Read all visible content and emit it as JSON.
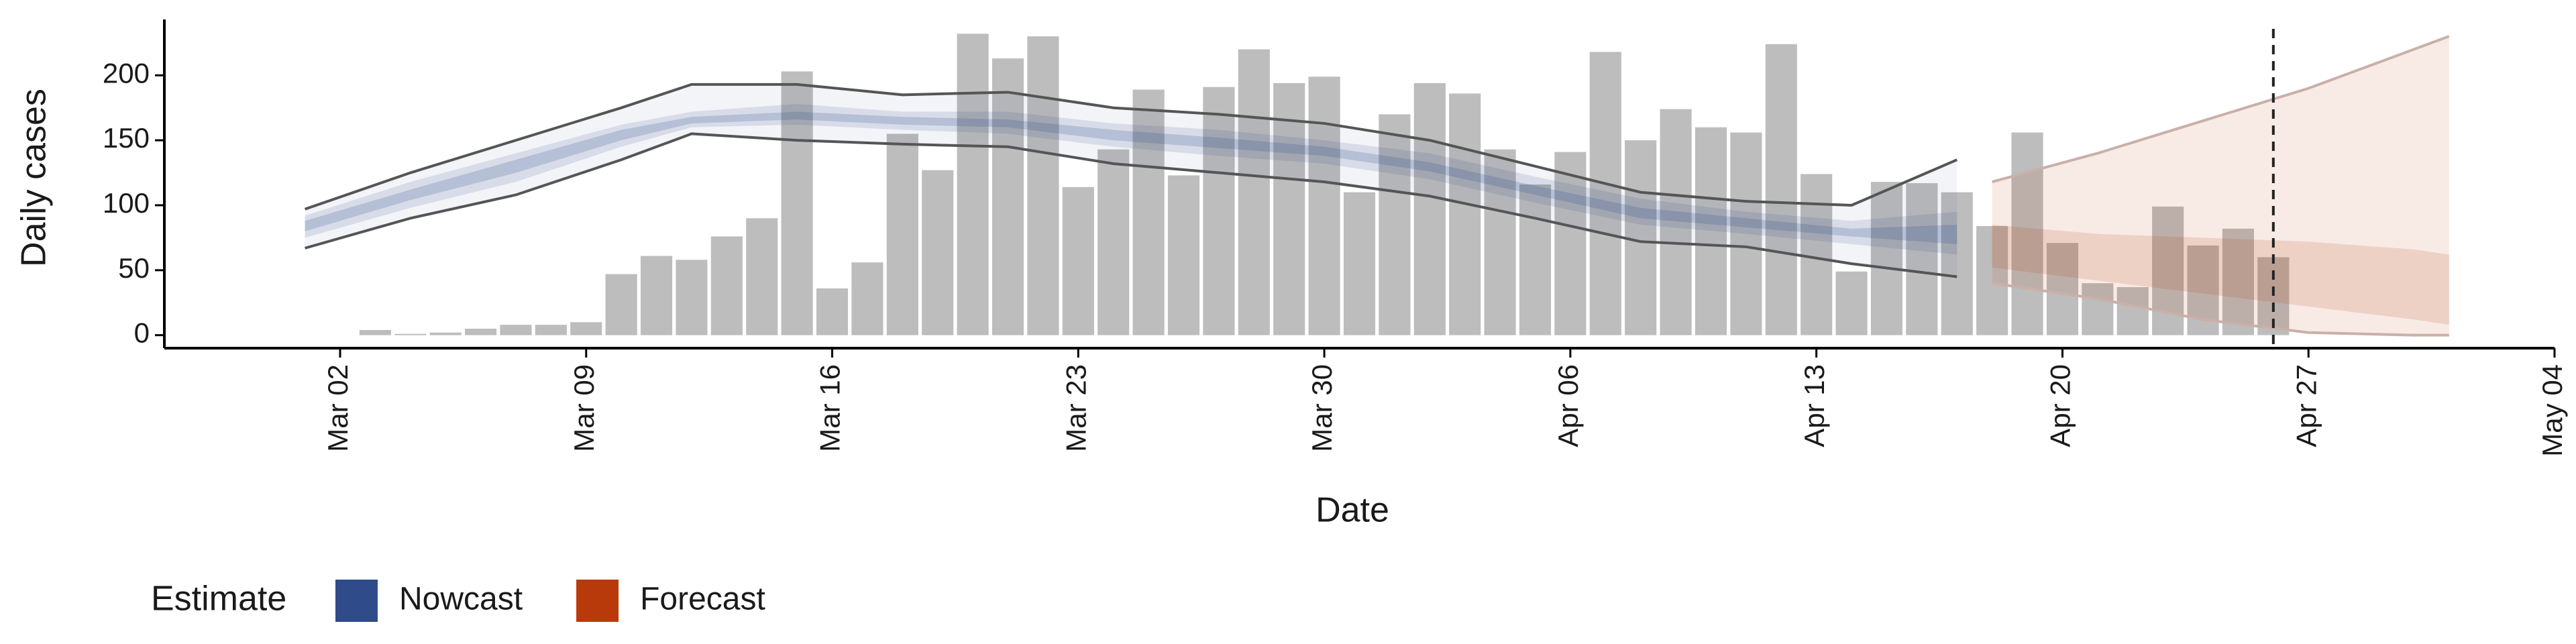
{
  "chart_data": {
    "type": "nowcast",
    "y_label": "Daily cases",
    "x_label": "Date",
    "legend_title": "Estimate",
    "xlim": [
      "Feb 26",
      "May 04"
    ],
    "xticks": [
      "Mar 02",
      "Mar 09",
      "Mar 16",
      "Mar 23",
      "Mar 30",
      "Apr 06",
      "Apr 13",
      "Apr 20",
      "Apr 27",
      "May 04"
    ],
    "ylim": [
      -10,
      243
    ],
    "yticks": [
      0,
      50,
      100,
      150,
      200
    ],
    "vline": "Apr 26",
    "bars": {
      "color": "#bdbdbd",
      "x": [
        "Mar 03",
        "Mar 04",
        "Mar 05",
        "Mar 06",
        "Mar 07",
        "Mar 08",
        "Mar 09",
        "Mar 10",
        "Mar 11",
        "Mar 12",
        "Mar 13",
        "Mar 14",
        "Mar 15",
        "Mar 16",
        "Mar 17",
        "Mar 18",
        "Mar 19",
        "Mar 20",
        "Mar 21",
        "Mar 22",
        "Mar 23",
        "Mar 24",
        "Mar 25",
        "Mar 26",
        "Mar 27",
        "Mar 28",
        "Mar 29",
        "Mar 30",
        "Mar 31",
        "Apr 01",
        "Apr 02",
        "Apr 03",
        "Apr 04",
        "Apr 05",
        "Apr 06",
        "Apr 07",
        "Apr 08",
        "Apr 09",
        "Apr 10",
        "Apr 11",
        "Apr 12",
        "Apr 13",
        "Apr 14",
        "Apr 15",
        "Apr 16",
        "Apr 17",
        "Apr 18",
        "Apr 19",
        "Apr 20",
        "Apr 21",
        "Apr 22",
        "Apr 23",
        "Apr 24",
        "Apr 25",
        "Apr 26"
      ],
      "values": [
        4,
        1,
        2,
        5,
        8,
        8,
        10,
        47,
        61,
        58,
        76,
        90,
        203,
        36,
        56,
        155,
        127,
        232,
        213,
        230,
        114,
        143,
        189,
        123,
        191,
        220,
        194,
        199,
        110,
        170,
        194,
        186,
        143,
        116,
        141,
        218,
        150,
        174,
        160,
        156,
        224,
        124,
        49,
        118,
        117,
        110,
        84,
        156,
        71,
        40,
        37,
        99,
        69,
        82,
        60
      ]
    },
    "series": [
      {
        "name": "Nowcast",
        "color": "#2f4b8a",
        "line_color": "#555555",
        "x": [
          "Mar 01",
          "Mar 04",
          "Mar 07",
          "Mar 10",
          "Mar 12",
          "Mar 15",
          "Mar 18",
          "Mar 21",
          "Mar 24",
          "Mar 27",
          "Mar 30",
          "Apr 02",
          "Apr 05",
          "Apr 08",
          "Apr 11",
          "Apr 14",
          "Apr 17"
        ],
        "upper90": [
          97,
          125,
          150,
          175,
          193,
          193,
          185,
          187,
          175,
          170,
          163,
          150,
          130,
          110,
          103,
          100,
          135
        ],
        "lower90": [
          67,
          90,
          108,
          135,
          155,
          150,
          147,
          145,
          132,
          125,
          118,
          107,
          90,
          72,
          68,
          55,
          45
        ],
        "upper50": [
          92,
          118,
          140,
          162,
          172,
          178,
          172,
          172,
          163,
          158,
          150,
          140,
          122,
          105,
          95,
          88,
          95
        ],
        "lower50": [
          75,
          98,
          118,
          145,
          160,
          162,
          158,
          155,
          145,
          138,
          132,
          120,
          102,
          85,
          78,
          70,
          62
        ],
        "upper20": [
          88,
          112,
          135,
          158,
          168,
          172,
          168,
          166,
          158,
          152,
          145,
          133,
          115,
          98,
          90,
          82,
          85
        ],
        "lower20": [
          80,
          104,
          125,
          150,
          163,
          166,
          162,
          160,
          150,
          144,
          138,
          126,
          108,
          90,
          83,
          76,
          70
        ]
      },
      {
        "name": "Forecast",
        "color": "#b83a0b",
        "line_color": "#c9b0a8",
        "x": [
          "Apr 18",
          "Apr 21",
          "Apr 24",
          "Apr 27",
          "Apr 30",
          "May 01"
        ],
        "upper90": [
          118,
          140,
          165,
          190,
          220,
          230
        ],
        "lower90": [
          40,
          28,
          12,
          2,
          0,
          0
        ],
        "upper50": [
          85,
          78,
          75,
          72,
          66,
          62
        ],
        "lower50": [
          52,
          42,
          32,
          22,
          12,
          8
        ]
      }
    ]
  }
}
